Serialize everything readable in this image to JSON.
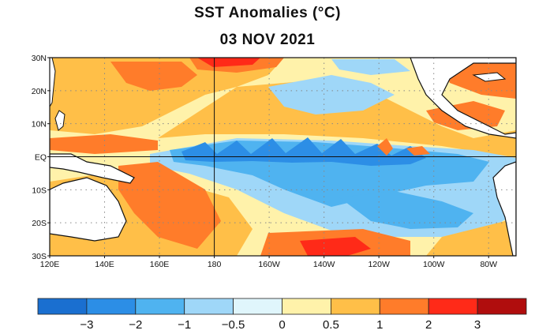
{
  "title": "SST Anomalies (°C)",
  "date": "03 NOV 2021",
  "lat_labels": [
    "30N",
    "20N",
    "10N",
    "EQ",
    "10S",
    "20S",
    "30S"
  ],
  "lat_values": [
    30,
    20,
    10,
    0,
    -10,
    -20,
    -30
  ],
  "lon_labels": [
    "120E",
    "140E",
    "160E",
    "180",
    "160W",
    "140W",
    "120W",
    "100W",
    "80W"
  ],
  "lon_values": [
    120,
    140,
    160,
    180,
    200,
    220,
    240,
    260,
    280
  ],
  "colorbar": {
    "colors": [
      "#1a6fd0",
      "#2c8ee6",
      "#4fb3f0",
      "#9fd7f8",
      "#e0f6fc",
      "#fff2aa",
      "#ffbf48",
      "#ff7c2a",
      "#ff2a18",
      "#b00d0d"
    ],
    "tick_labels": [
      "−3",
      "−2",
      "−1",
      "−0.5",
      "0",
      "0.5",
      "1",
      "2",
      "3"
    ]
  },
  "colors": {
    "neutral_warm": "#fff2aa",
    "warm": "#ffbf48",
    "hot": "#ff7c2a",
    "hotter": "#ff2a18",
    "cool": "#9fd7f8",
    "cold": "#4fb3f0",
    "colder": "#2c8ee6",
    "land": "#ffffff",
    "frame": "#111111",
    "grid": "#888888"
  }
}
